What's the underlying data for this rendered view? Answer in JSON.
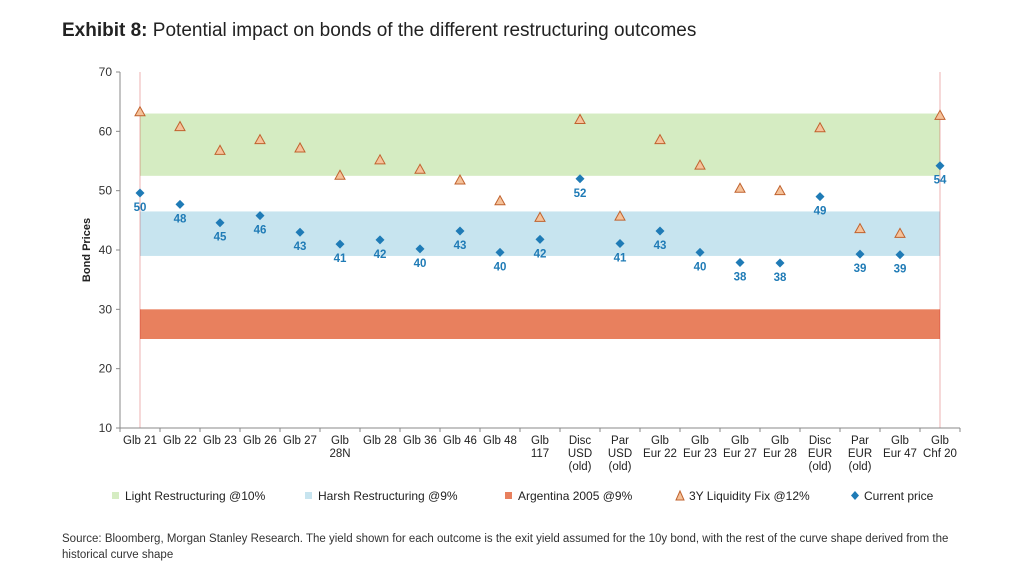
{
  "header": {
    "label": "Exhibit 8:",
    "title": "Potential impact on bonds of the different restructuring outcomes"
  },
  "source": "Source: Bloomberg, Morgan Stanley Research. The yield shown for each outcome is the exit yield assumed for the 10y bond, with the rest of the curve shape derived from the historical curve shape",
  "colors": {
    "light": "#d5ecc2",
    "harsh": "#c7e4ef",
    "argentina": "#e8805e",
    "liquidity_fill": "#f5c29a",
    "liquidity_stroke": "#c0622e",
    "current": "#1f7bb6",
    "axis": "#c00000"
  },
  "chart_data": {
    "type": "scatter",
    "ylabel": "Bond Prices",
    "ylim": [
      10,
      70
    ],
    "yticks": [
      10,
      20,
      30,
      40,
      50,
      60,
      70
    ],
    "categories": [
      [
        "Glb 21"
      ],
      [
        "Glb 22"
      ],
      [
        "Glb 23"
      ],
      [
        "Glb 26"
      ],
      [
        "Glb 27"
      ],
      [
        "Glb",
        "28N"
      ],
      [
        "Glb 28"
      ],
      [
        "Glb 36"
      ],
      [
        "Glb 46"
      ],
      [
        "Glb 48"
      ],
      [
        "Glb",
        "117"
      ],
      [
        "Disc",
        "USD",
        "(old)"
      ],
      [
        "Par",
        "USD",
        "(old)"
      ],
      [
        "Glb",
        "Eur 22"
      ],
      [
        "Glb",
        "Eur 23"
      ],
      [
        "Glb",
        "Eur 27"
      ],
      [
        "Glb",
        "Eur 28"
      ],
      [
        "Disc",
        "EUR",
        "(old)"
      ],
      [
        "Par",
        "EUR",
        "(old)"
      ],
      [
        "Glb",
        "Eur 47"
      ],
      [
        "Glb",
        "Chf 20"
      ]
    ],
    "bands": [
      {
        "name": "Light Restructuring @10%",
        "range": [
          52.5,
          63
        ],
        "color": "#d5ecc2"
      },
      {
        "name": "Harsh Restructuring @9%",
        "range": [
          39,
          46.5
        ],
        "color": "#c7e4ef"
      },
      {
        "name": "Argentina 2005 @9%",
        "range": [
          25,
          30
        ],
        "color": "#e8805e"
      }
    ],
    "series": [
      {
        "name": "3Y Liquidity Fix @12%",
        "marker": "triangle",
        "values": [
          63.3,
          60.8,
          56.8,
          58.6,
          57.2,
          52.6,
          55.2,
          53.6,
          51.8,
          48.3,
          45.5,
          62.0,
          45.7,
          58.6,
          54.3,
          50.4,
          50.0,
          60.6,
          43.6,
          42.8,
          62.7
        ]
      },
      {
        "name": "Current price",
        "marker": "diamond",
        "values": [
          49.6,
          47.7,
          44.6,
          45.8,
          43.0,
          41.0,
          41.7,
          40.2,
          43.2,
          39.6,
          41.8,
          52.0,
          41.1,
          43.2,
          39.6,
          37.9,
          37.8,
          49.0,
          39.3,
          39.2,
          54.2
        ],
        "labels": [
          "50",
          "48",
          "45",
          "46",
          "43",
          "41",
          "42",
          "40",
          "43",
          "40",
          "42",
          "52",
          "41",
          "43",
          "40",
          "38",
          "38",
          "49",
          "39",
          "39",
          "54"
        ]
      }
    ],
    "legend_position": "bottom"
  }
}
